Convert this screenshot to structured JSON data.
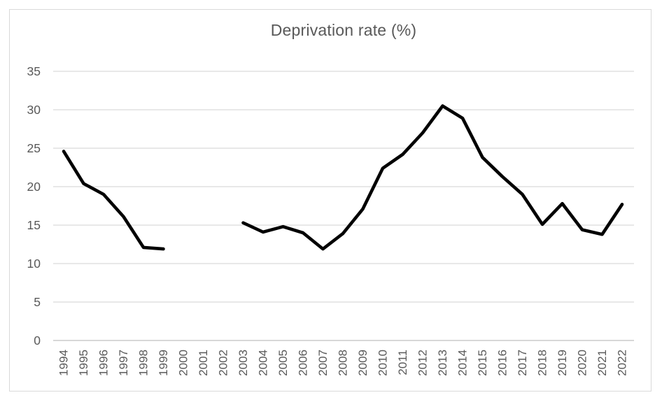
{
  "chart_data": {
    "type": "line",
    "title": "Deprivation rate (%)",
    "categories": [
      "1994",
      "1995",
      "1996",
      "1997",
      "1998",
      "1999",
      "2000",
      "2001",
      "2002",
      "2003",
      "2004",
      "2005",
      "2006",
      "2007",
      "2008",
      "2009",
      "2010",
      "2011",
      "2012",
      "2013",
      "2014",
      "2015",
      "2016",
      "2017",
      "2018",
      "2019",
      "2020",
      "2021",
      "2022"
    ],
    "series": [
      {
        "name": "Deprivation rate (%)",
        "values": [
          24.6,
          20.4,
          19.0,
          16.1,
          12.1,
          11.9,
          null,
          null,
          null,
          15.3,
          14.1,
          14.8,
          14.0,
          11.9,
          13.9,
          17.1,
          22.4,
          24.2,
          27.0,
          30.5,
          28.9,
          23.8,
          21.3,
          19.0,
          15.1,
          17.8,
          14.4,
          13.8,
          17.7
        ]
      }
    ],
    "xlabel": "",
    "ylabel": "",
    "ylim": [
      0,
      35
    ],
    "yticks": [
      0,
      5,
      10,
      15,
      20,
      25,
      30,
      35
    ],
    "grid": true,
    "legend_position": "none"
  },
  "colors": {
    "title": "#595959",
    "tick_labels": "#595959",
    "gridline": "#d9d9d9",
    "axis_line": "#bfbfbf",
    "frame_border": "#d9d9d9",
    "series_line": "#000000",
    "background": "#ffffff"
  }
}
